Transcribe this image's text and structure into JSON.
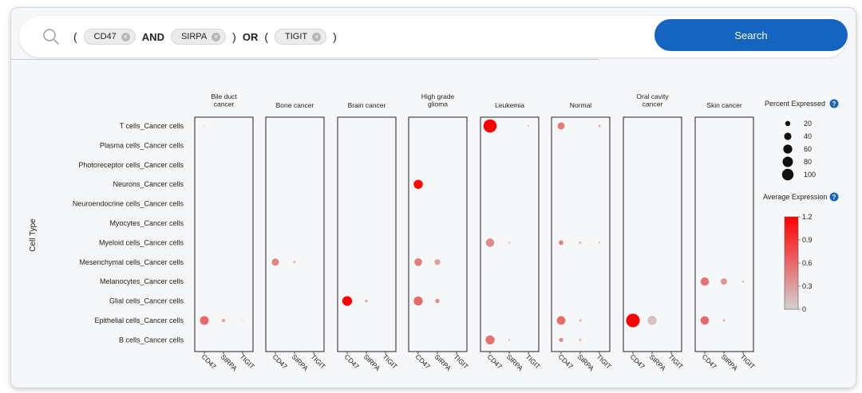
{
  "search": {
    "paren_open_1": "(",
    "term1": "CD47",
    "op_and": "AND",
    "term2": "SIRPA",
    "paren_close_1": ")",
    "op_or": "OR",
    "paren_open_2": "(",
    "term3": "TIGIT",
    "paren_close_2": ")",
    "button_label": "Search",
    "chip_remove": "×"
  },
  "colors": {
    "accent": "#1565c0",
    "high": "#ff0000",
    "low": "#d2d2d2"
  },
  "chart_data": {
    "type": "dotplot",
    "ylabel": "Cell Type",
    "genes": [
      "CD47",
      "SIRPA",
      "TIGIT"
    ],
    "cell_types": [
      "T cells_Cancer cells",
      "Plasma cells_Cancer cells",
      "Photoreceptor cells_Cancer cells",
      "Neurons_Cancer cells",
      "Neuroendocrine cells_Cancer cells",
      "Myocytes_Cancer cells",
      "Myeloid cells_Cancer cells",
      "Mesenchymal cells_Cancer cells",
      "Melanocytes_Cancer cells",
      "Glial cells_Cancer cells",
      "Epithelial cells_Cancer cells",
      "B cells_Cancer cells"
    ],
    "panels": [
      {
        "title": [
          "Bile duct",
          "cancer"
        ],
        "points": [
          {
            "cell": "T cells_Cancer cells",
            "gene": "CD47",
            "pct": 1,
            "expr": 0.05
          },
          {
            "cell": "Epithelial cells_Cancer cells",
            "gene": "CD47",
            "pct": 42,
            "expr": 0.6
          },
          {
            "cell": "Epithelial cells_Cancer cells",
            "gene": "SIRPA",
            "pct": 8,
            "expr": 0.2
          },
          {
            "cell": "Epithelial cells_Cancer cells",
            "gene": "TIGIT",
            "pct": 1,
            "expr": 0.05
          }
        ]
      },
      {
        "title": [
          "Bone cancer"
        ],
        "points": [
          {
            "cell": "Mesenchymal cells_Cancer cells",
            "gene": "CD47",
            "pct": 28,
            "expr": 0.45
          },
          {
            "cell": "Mesenchymal cells_Cancer cells",
            "gene": "SIRPA",
            "pct": 3,
            "expr": 0.2
          }
        ]
      },
      {
        "title": [
          "Brain cancer"
        ],
        "points": [
          {
            "cell": "Glial cells_Cancer cells",
            "gene": "CD47",
            "pct": 52,
            "expr": 1.2
          },
          {
            "cell": "Glial cells_Cancer cells",
            "gene": "SIRPA",
            "pct": 5,
            "expr": 0.15
          }
        ]
      },
      {
        "title": [
          "High grade",
          "glioma"
        ],
        "points": [
          {
            "cell": "Neurons_Cancer cells",
            "gene": "CD47",
            "pct": 45,
            "expr": 1.15
          },
          {
            "cell": "Mesenchymal cells_Cancer cells",
            "gene": "CD47",
            "pct": 32,
            "expr": 0.5
          },
          {
            "cell": "Mesenchymal cells_Cancer cells",
            "gene": "SIRPA",
            "pct": 18,
            "expr": 0.3
          },
          {
            "cell": "Glial cells_Cancer cells",
            "gene": "CD47",
            "pct": 44,
            "expr": 0.6
          },
          {
            "cell": "Glial cells_Cancer cells",
            "gene": "SIRPA",
            "pct": 10,
            "expr": 0.4
          }
        ]
      },
      {
        "title": [
          "Leukemia"
        ],
        "points": [
          {
            "cell": "T cells_Cancer cells",
            "gene": "CD47",
            "pct": 95,
            "expr": 1.2
          },
          {
            "cell": "T cells_Cancer cells",
            "gene": "TIGIT",
            "pct": 2,
            "expr": 0.1
          },
          {
            "cell": "Myeloid cells_Cancer cells",
            "gene": "CD47",
            "pct": 38,
            "expr": 0.4
          },
          {
            "cell": "Myeloid cells_Cancer cells",
            "gene": "SIRPA",
            "pct": 2,
            "expr": 0.1
          },
          {
            "cell": "B cells_Cancer cells",
            "gene": "CD47",
            "pct": 45,
            "expr": 0.55
          },
          {
            "cell": "B cells_Cancer cells",
            "gene": "SIRPA",
            "pct": 2,
            "expr": 0.1
          }
        ]
      },
      {
        "title": [
          "Normal"
        ],
        "points": [
          {
            "cell": "T cells_Cancer cells",
            "gene": "CD47",
            "pct": 28,
            "expr": 0.5
          },
          {
            "cell": "T cells_Cancer cells",
            "gene": "TIGIT",
            "pct": 3,
            "expr": 0.2
          },
          {
            "cell": "Myeloid cells_Cancer cells",
            "gene": "CD47",
            "pct": 12,
            "expr": 0.45
          },
          {
            "cell": "Myeloid cells_Cancer cells",
            "gene": "SIRPA",
            "pct": 3,
            "expr": 0.2
          },
          {
            "cell": "Myeloid cells_Cancer cells",
            "gene": "TIGIT",
            "pct": 2,
            "expr": 0.15
          },
          {
            "cell": "Epithelial cells_Cancer cells",
            "gene": "CD47",
            "pct": 40,
            "expr": 0.6
          },
          {
            "cell": "Epithelial cells_Cancer cells",
            "gene": "SIRPA",
            "pct": 3,
            "expr": 0.2
          },
          {
            "cell": "B cells_Cancer cells",
            "gene": "CD47",
            "pct": 10,
            "expr": 0.4
          },
          {
            "cell": "B cells_Cancer cells",
            "gene": "SIRPA",
            "pct": 3,
            "expr": 0.2
          }
        ]
      },
      {
        "title": [
          "Oral cavity",
          "cancer"
        ],
        "points": [
          {
            "cell": "Epithelial cells_Cancer cells",
            "gene": "CD47",
            "pct": 100,
            "expr": 1.2
          },
          {
            "cell": "Epithelial cells_Cancer cells",
            "gene": "SIRPA",
            "pct": 45,
            "expr": 0.1
          }
        ]
      },
      {
        "title": [
          "Skin cancer"
        ],
        "points": [
          {
            "cell": "Melanocytes_Cancer cells",
            "gene": "CD47",
            "pct": 38,
            "expr": 0.55
          },
          {
            "cell": "Melanocytes_Cancer cells",
            "gene": "SIRPA",
            "pct": 22,
            "expr": 0.35
          },
          {
            "cell": "Melanocytes_Cancer cells",
            "gene": "TIGIT",
            "pct": 3,
            "expr": 0.1
          },
          {
            "cell": "Epithelial cells_Cancer cells",
            "gene": "CD47",
            "pct": 38,
            "expr": 0.6
          },
          {
            "cell": "Epithelial cells_Cancer cells",
            "gene": "SIRPA",
            "pct": 3,
            "expr": 0.2
          }
        ]
      }
    ],
    "size_legend": {
      "title": "Percent Expressed",
      "values": [
        20,
        40,
        60,
        80,
        100
      ],
      "help_icon": "?"
    },
    "color_legend": {
      "title": "Average Expression",
      "range": [
        0,
        1.2
      ],
      "ticks": [
        "1.2",
        "0.9",
        "0.6",
        "0.3",
        "0"
      ],
      "help_icon": "?"
    }
  }
}
